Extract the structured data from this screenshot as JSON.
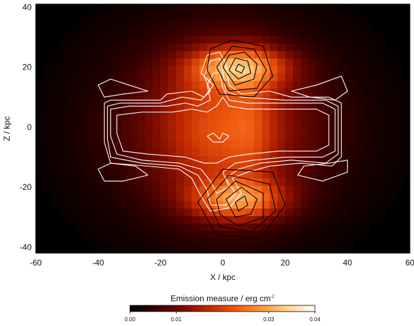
{
  "chart_data": {
    "type": "heatmap",
    "xlabel": "X / kpc",
    "ylabel": "Z / kpc",
    "xlim": [
      -60,
      60
    ],
    "ylim": [
      -42,
      41
    ],
    "x_ticks": [
      -60,
      -40,
      -20,
      0,
      20,
      40,
      60
    ],
    "y_ticks": [
      -40,
      -20,
      0,
      20,
      40
    ],
    "colormap": [
      "#000000",
      "#3a0000",
      "#7a0a00",
      "#c02a00",
      "#f05a10",
      "#ff9a40",
      "#ffd890",
      "#ffffff"
    ],
    "colorbar": {
      "label": "Emission measure / erg cm",
      "label_superscript": "-2",
      "range": [
        0.0,
        0.04
      ],
      "ticks": [
        "0.00",
        "0.01",
        "0.03",
        "0.04"
      ],
      "tick_positions": [
        0.0,
        0.01,
        0.03,
        0.04
      ]
    },
    "emission_blobs": [
      {
        "cx": 0,
        "cz": 0,
        "rx": 40,
        "rz": 34,
        "amp": 0.01
      },
      {
        "cx": 0,
        "cz": 0,
        "rx": 22,
        "rz": 30,
        "amp": 0.008
      },
      {
        "cx": 5,
        "cz": 20,
        "rx": 18,
        "rz": 8,
        "amp": 0.022
      },
      {
        "cx": 5,
        "cz": -24,
        "rx": 18,
        "rz": 8,
        "amp": 0.02
      },
      {
        "cx": 9,
        "cz": 0,
        "rx": 8,
        "rz": 26,
        "amp": 0.004
      }
    ],
    "contours": {
      "white": [
        [
          [
            -38,
            -5
          ],
          [
            -38,
            8
          ],
          [
            -36,
            9
          ],
          [
            -20,
            9
          ],
          [
            -18,
            11
          ],
          [
            -10,
            12
          ],
          [
            -6,
            10
          ],
          [
            -3,
            14
          ],
          [
            -7,
            18
          ],
          [
            -5,
            24
          ],
          [
            -1,
            25
          ],
          [
            1,
            21
          ],
          [
            2,
            14
          ],
          [
            6,
            11
          ],
          [
            15,
            12
          ],
          [
            22,
            10
          ],
          [
            34,
            10
          ],
          [
            38,
            8
          ],
          [
            38,
            -10
          ],
          [
            35,
            -13
          ],
          [
            25,
            -12
          ],
          [
            15,
            -13
          ],
          [
            8,
            -15
          ],
          [
            3,
            -17
          ],
          [
            6,
            -22
          ],
          [
            2,
            -27
          ],
          [
            -4,
            -28
          ],
          [
            -7,
            -23
          ],
          [
            -10,
            -17
          ],
          [
            -14,
            -14
          ],
          [
            -24,
            -13
          ],
          [
            -36,
            -12
          ],
          [
            -38,
            -5
          ]
        ],
        [
          [
            -37,
            -4
          ],
          [
            -37,
            7
          ],
          [
            -33,
            8
          ],
          [
            -20,
            8
          ],
          [
            -13,
            10
          ],
          [
            -7,
            9
          ],
          [
            -4,
            12
          ],
          [
            -6,
            17
          ],
          [
            -4,
            22
          ],
          [
            -1,
            23
          ],
          [
            0,
            18
          ],
          [
            1,
            12
          ],
          [
            6,
            10
          ],
          [
            20,
            9
          ],
          [
            33,
            9
          ],
          [
            37,
            7
          ],
          [
            37,
            -9
          ],
          [
            33,
            -12
          ],
          [
            22,
            -11
          ],
          [
            12,
            -12
          ],
          [
            5,
            -14
          ],
          [
            1,
            -17
          ],
          [
            4,
            -22
          ],
          [
            1,
            -26
          ],
          [
            -4,
            -26
          ],
          [
            -5,
            -21
          ],
          [
            -8,
            -16
          ],
          [
            -14,
            -13
          ],
          [
            -26,
            -12
          ],
          [
            -36,
            -10
          ],
          [
            -37,
            -4
          ]
        ],
        [
          [
            -36,
            -3
          ],
          [
            -36,
            6
          ],
          [
            -30,
            7
          ],
          [
            -18,
            7
          ],
          [
            -12,
            8
          ],
          [
            -8,
            7
          ],
          [
            -4,
            9
          ],
          [
            -5,
            14
          ],
          [
            -3,
            18
          ],
          [
            -1,
            18
          ],
          [
            0,
            13
          ],
          [
            2,
            9
          ],
          [
            8,
            8
          ],
          [
            20,
            8
          ],
          [
            32,
            8
          ],
          [
            36,
            6
          ],
          [
            36,
            -8
          ],
          [
            32,
            -10
          ],
          [
            20,
            -10
          ],
          [
            10,
            -11
          ],
          [
            4,
            -12
          ],
          [
            0,
            -15
          ],
          [
            2,
            -20
          ],
          [
            -2,
            -22
          ],
          [
            -4,
            -18
          ],
          [
            -7,
            -14
          ],
          [
            -14,
            -12
          ],
          [
            -26,
            -11
          ],
          [
            -34,
            -9
          ],
          [
            -36,
            -3
          ]
        ],
        [
          [
            -34,
            -2
          ],
          [
            -34,
            4
          ],
          [
            -26,
            5
          ],
          [
            -16,
            5
          ],
          [
            -10,
            6
          ],
          [
            -5,
            5
          ],
          [
            -2,
            7
          ],
          [
            0,
            10
          ],
          [
            2,
            7
          ],
          [
            8,
            6
          ],
          [
            20,
            6
          ],
          [
            30,
            6
          ],
          [
            34,
            4
          ],
          [
            34,
            -6
          ],
          [
            30,
            -8
          ],
          [
            18,
            -8
          ],
          [
            8,
            -9
          ],
          [
            2,
            -10
          ],
          [
            -2,
            -12
          ],
          [
            -6,
            -12
          ],
          [
            -12,
            -10
          ],
          [
            -24,
            -9
          ],
          [
            -32,
            -8
          ],
          [
            -34,
            -2
          ]
        ],
        [
          [
            -24,
            12
          ],
          [
            -30,
            14
          ],
          [
            -36,
            16
          ],
          [
            -40,
            14
          ],
          [
            -38,
            10
          ],
          [
            -32,
            11
          ],
          [
            -24,
            12
          ]
        ],
        [
          [
            22,
            12
          ],
          [
            30,
            14
          ],
          [
            38,
            17
          ],
          [
            40,
            12
          ],
          [
            36,
            9
          ],
          [
            28,
            10
          ],
          [
            22,
            12
          ]
        ],
        [
          [
            -24,
            -16
          ],
          [
            -32,
            -18
          ],
          [
            -38,
            -18
          ],
          [
            -40,
            -14
          ],
          [
            -36,
            -12
          ],
          [
            -28,
            -13
          ],
          [
            -24,
            -16
          ]
        ],
        [
          [
            24,
            -16
          ],
          [
            32,
            -18
          ],
          [
            40,
            -15
          ],
          [
            40,
            -11
          ],
          [
            34,
            -12
          ],
          [
            26,
            -13
          ],
          [
            24,
            -16
          ]
        ],
        [
          [
            -5,
            -3
          ],
          [
            -3,
            -2
          ],
          [
            -1,
            -4
          ],
          [
            0,
            -2
          ],
          [
            2,
            -3
          ],
          [
            0,
            -5
          ],
          [
            -3,
            -5
          ],
          [
            -5,
            -3
          ]
        ]
      ],
      "black": [
        [
          [
            4,
            19
          ],
          [
            6,
            18
          ],
          [
            7,
            20
          ],
          [
            5,
            21
          ],
          [
            4,
            19
          ]
        ],
        [
          [
            2,
            19
          ],
          [
            5,
            16
          ],
          [
            9,
            18
          ],
          [
            8,
            22
          ],
          [
            4,
            23
          ],
          [
            2,
            19
          ]
        ],
        [
          [
            0,
            20
          ],
          [
            4,
            14
          ],
          [
            10,
            16
          ],
          [
            11,
            21
          ],
          [
            7,
            25
          ],
          [
            2,
            24
          ],
          [
            0,
            20
          ]
        ],
        [
          [
            -2,
            20
          ],
          [
            2,
            12
          ],
          [
            11,
            13
          ],
          [
            14,
            19
          ],
          [
            10,
            26
          ],
          [
            3,
            27
          ],
          [
            -2,
            20
          ]
        ],
        [
          [
            -5,
            19
          ],
          [
            -1,
            11
          ],
          [
            10,
            10
          ],
          [
            16,
            17
          ],
          [
            13,
            27
          ],
          [
            3,
            29
          ],
          [
            -4,
            26
          ],
          [
            -5,
            19
          ]
        ],
        [
          [
            4,
            -25
          ],
          [
            7,
            -23
          ],
          [
            8,
            -26
          ],
          [
            5,
            -28
          ],
          [
            4,
            -25
          ]
        ],
        [
          [
            1,
            -24
          ],
          [
            6,
            -20
          ],
          [
            11,
            -24
          ],
          [
            9,
            -29
          ],
          [
            4,
            -30
          ],
          [
            1,
            -24
          ]
        ],
        [
          [
            -2,
            -24
          ],
          [
            4,
            -18
          ],
          [
            13,
            -22
          ],
          [
            13,
            -30
          ],
          [
            5,
            -33
          ],
          [
            -1,
            -29
          ],
          [
            -2,
            -24
          ]
        ],
        [
          [
            -5,
            -24
          ],
          [
            2,
            -16
          ],
          [
            15,
            -19
          ],
          [
            17,
            -28
          ],
          [
            9,
            -35
          ],
          [
            -1,
            -33
          ],
          [
            -5,
            -24
          ]
        ],
        [
          [
            -8,
            -25
          ],
          [
            0,
            -14
          ],
          [
            16,
            -15
          ],
          [
            20,
            -26
          ],
          [
            12,
            -37
          ],
          [
            -2,
            -36
          ],
          [
            -8,
            -25
          ]
        ]
      ]
    }
  }
}
